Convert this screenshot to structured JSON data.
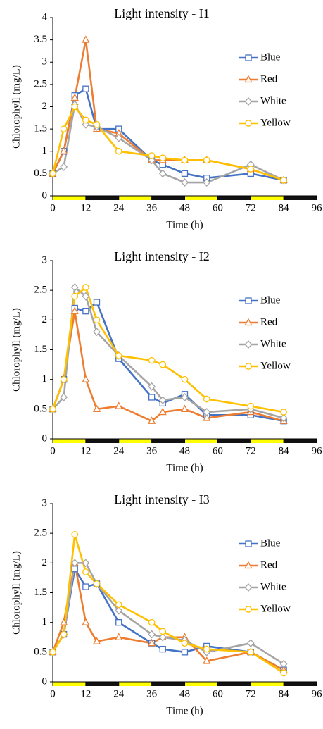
{
  "chart_data": [
    {
      "type": "line",
      "title": "Light intensity - I1",
      "x_label": "Time (h)",
      "y_label": "Chlorophyll (mg/L)",
      "x": [
        0,
        4,
        8,
        12,
        16,
        24,
        36,
        40,
        48,
        56,
        72,
        84
      ],
      "xlim": [
        0,
        96
      ],
      "xticks": [
        0,
        12,
        24,
        36,
        48,
        60,
        72,
        84,
        96
      ],
      "ylim": [
        0,
        4
      ],
      "yticks": [
        0,
        0.5,
        1,
        1.5,
        2,
        2.5,
        3,
        3.5,
        4
      ],
      "series": [
        {
          "name": "Blue",
          "color": "#4472c4",
          "marker": "square",
          "values": [
            0.5,
            1.0,
            2.25,
            2.4,
            1.5,
            1.5,
            0.8,
            0.7,
            0.5,
            0.4,
            0.5,
            0.35
          ]
        },
        {
          "name": "Red",
          "color": "#ed7d31",
          "marker": "triangle",
          "values": [
            0.5,
            1.0,
            2.2,
            3.5,
            1.5,
            1.4,
            0.8,
            0.8,
            0.8,
            0.8,
            0.6,
            0.35
          ]
        },
        {
          "name": "White",
          "color": "#a5a5a5",
          "marker": "diamond",
          "values": [
            0.5,
            0.65,
            2.05,
            1.6,
            1.55,
            1.3,
            0.8,
            0.5,
            0.3,
            0.3,
            0.7,
            0.35
          ]
        },
        {
          "name": "Yellow",
          "color": "#ffc000",
          "marker": "circle",
          "values": [
            0.5,
            1.5,
            2.0,
            1.7,
            1.6,
            1.0,
            0.9,
            0.85,
            0.8,
            0.8,
            0.6,
            0.35
          ]
        }
      ]
    },
    {
      "type": "line",
      "title": "Light intensity - I2",
      "x_label": "Time (h)",
      "y_label": "Chlorophyll (mg/L)",
      "x": [
        0,
        4,
        8,
        12,
        16,
        24,
        36,
        40,
        48,
        56,
        72,
        84
      ],
      "xlim": [
        0,
        96
      ],
      "xticks": [
        0,
        12,
        24,
        36,
        48,
        60,
        72,
        84,
        96
      ],
      "ylim": [
        0,
        3
      ],
      "yticks": [
        0,
        0.5,
        1,
        1.5,
        2,
        2.5,
        3
      ],
      "series": [
        {
          "name": "Blue",
          "color": "#4472c4",
          "marker": "square",
          "values": [
            0.5,
            1.0,
            2.2,
            2.15,
            2.3,
            1.35,
            0.7,
            0.6,
            0.75,
            0.4,
            0.4,
            0.3
          ]
        },
        {
          "name": "Red",
          "color": "#ed7d31",
          "marker": "triangle",
          "values": [
            0.5,
            1.0,
            2.15,
            1.0,
            0.5,
            0.55,
            0.3,
            0.45,
            0.5,
            0.35,
            0.45,
            0.3
          ]
        },
        {
          "name": "White",
          "color": "#a5a5a5",
          "marker": "diamond",
          "values": [
            0.5,
            0.7,
            2.55,
            2.4,
            1.8,
            1.4,
            0.88,
            0.65,
            0.7,
            0.45,
            0.5,
            0.35
          ]
        },
        {
          "name": "Yellow",
          "color": "#ffc000",
          "marker": "circle",
          "values": [
            0.5,
            1.0,
            2.4,
            2.55,
            2.0,
            1.4,
            1.32,
            1.25,
            1.0,
            0.67,
            0.55,
            0.45
          ]
        }
      ]
    },
    {
      "type": "line",
      "title": "Light intensity - I3",
      "x_label": "Time (h)",
      "y_label": "Chlorophyll (mg/L)",
      "x": [
        0,
        4,
        8,
        12,
        16,
        24,
        36,
        40,
        48,
        56,
        72,
        84
      ],
      "xlim": [
        0,
        96
      ],
      "xticks": [
        0,
        12,
        24,
        36,
        48,
        60,
        72,
        84,
        96
      ],
      "ylim": [
        0,
        3
      ],
      "yticks": [
        0,
        0.5,
        1,
        1.5,
        2,
        2.5,
        3
      ],
      "series": [
        {
          "name": "Blue",
          "color": "#4472c4",
          "marker": "square",
          "values": [
            0.5,
            0.8,
            1.9,
            1.6,
            1.65,
            1.0,
            0.65,
            0.55,
            0.5,
            0.6,
            0.5,
            0.2
          ]
        },
        {
          "name": "Red",
          "color": "#ed7d31",
          "marker": "triangle",
          "values": [
            0.5,
            1.0,
            2.0,
            1.0,
            0.68,
            0.75,
            0.65,
            0.75,
            0.75,
            0.35,
            0.5,
            0.2
          ]
        },
        {
          "name": "White",
          "color": "#a5a5a5",
          "marker": "diamond",
          "values": [
            0.5,
            0.8,
            2.0,
            2.0,
            1.65,
            1.2,
            0.8,
            0.75,
            0.7,
            0.5,
            0.65,
            0.3
          ]
        },
        {
          "name": "Yellow",
          "color": "#ffc000",
          "marker": "circle",
          "values": [
            0.5,
            0.8,
            2.48,
            1.85,
            1.65,
            1.3,
            1.0,
            0.85,
            0.65,
            0.55,
            0.5,
            0.15
          ]
        }
      ]
    }
  ]
}
